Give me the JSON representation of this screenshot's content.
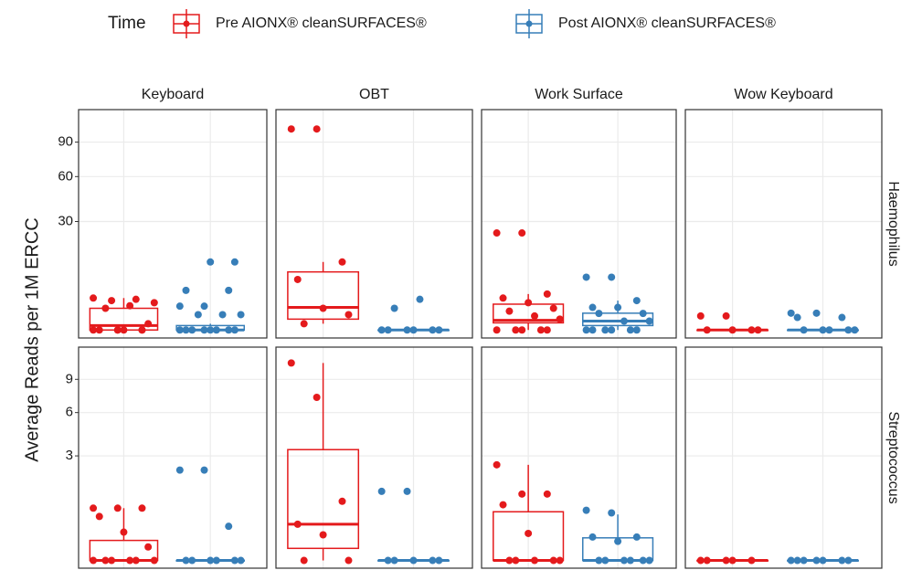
{
  "chart_data": {
    "type": "box",
    "yscale": "sqrt",
    "ylabel": "Average Reads per 1M ERCC",
    "legend_title": "Time",
    "grid": true,
    "series": [
      {
        "name": "Pre AIONX® cleanSURFACES®",
        "color": "#e41a1c"
      },
      {
        "name": "Post AIONX® cleanSURFACES®",
        "color": "#377eb8"
      }
    ],
    "columns": [
      "Keyboard",
      "OBT",
      "Work Surface",
      "Wow Keyboard"
    ],
    "rows": [
      {
        "label": "Haemophilus",
        "ylim": [
          0,
          115
        ],
        "yticks": [
          30,
          60,
          90
        ],
        "panels": [
          {
            "groups": [
              {
                "points": [
                  0,
                  0,
                  0,
                  0,
                  0,
                  0.1,
                  1.2,
                  1.5,
                  1.9,
                  2.2,
                  2.4,
                  2.6,
                  0,
                  0
                ],
                "box": {
                  "min": 0,
                  "q1": 0,
                  "median": 0.05,
                  "q3": 1.2,
                  "max": 2.6
                }
              },
              {
                "points": [
                  0,
                  0,
                  0,
                  0,
                  0,
                  0,
                  0,
                  0,
                  0.6,
                  0.6,
                  0.6,
                  1.45,
                  1.45,
                  4,
                  4,
                  11.8,
                  11.8
                ],
                "box": {
                  "min": 0,
                  "q1": 0,
                  "median": 0,
                  "q3": 0.05,
                  "max": 0.1
                }
              }
            ]
          },
          {
            "groups": [
              {
                "points": [
                  103,
                  103,
                  11.8,
                  6.5,
                  1.2,
                  0.6,
                  0.1
                ],
                "box": {
                  "min": 0.1,
                  "q1": 0.3,
                  "median": 1.3,
                  "q3": 8.6,
                  "max": 11.8
                }
              },
              {
                "points": [
                  0,
                  0,
                  0,
                  0,
                  0,
                  0,
                  1.2,
                  2.4
                ],
                "box": {
                  "min": 0,
                  "q1": 0,
                  "median": 0,
                  "q3": 0,
                  "max": 0
                }
              }
            ]
          },
          {
            "groups": [
              {
                "points": [
                  24,
                  24,
                  3.3,
                  2.6,
                  1.9,
                  1.2,
                  0.9,
                  0.5,
                  0.3,
                  0,
                  0,
                  0,
                  0,
                  0
                ],
                "box": {
                  "min": 0,
                  "q1": 0.13,
                  "median": 0.24,
                  "q3": 1.7,
                  "max": 3.3
                }
              },
              {
                "points": [
                  7.1,
                  7.1,
                  2.2,
                  1.3,
                  1.3,
                  0.7,
                  0.7,
                  0.2,
                  0.2,
                  0,
                  0,
                  0,
                  0,
                  0,
                  0
                ],
                "box": {
                  "min": 0,
                  "q1": 0.05,
                  "median": 0.2,
                  "q3": 0.72,
                  "max": 2.2
                }
              }
            ]
          },
          {
            "groups": [
              {
                "points": [
                  0.5,
                  0.5,
                  0,
                  0,
                  0,
                  0
                ],
                "box": {
                  "min": 0,
                  "q1": 0,
                  "median": 0,
                  "q3": 0,
                  "max": 0
                }
              },
              {
                "points": [
                  0.72,
                  0.72,
                  0.4,
                  0.4,
                  0,
                  0,
                  0,
                  0,
                  0
                ],
                "box": {
                  "min": 0,
                  "q1": 0,
                  "median": 0,
                  "q3": 0,
                  "max": 0
                }
              }
            ]
          }
        ]
      },
      {
        "label": "Streptococcus",
        "ylim": [
          0,
          11.6
        ],
        "yticks": [
          3,
          6,
          9
        ],
        "panels": [
          {
            "groups": [
              {
                "points": [
                  0.75,
                  0.75,
                  0.75,
                  0.53,
                  0.22,
                  0.05,
                  0,
                  0,
                  0,
                  0,
                  0,
                  0
                ],
                "box": {
                  "min": 0,
                  "q1": 0,
                  "median": 0,
                  "q3": 0.11,
                  "max": 0.75
                }
              },
              {
                "points": [
                  2.24,
                  2.24,
                  0.32,
                  0,
                  0,
                  0,
                  0,
                  0,
                  0
                ],
                "box": {
                  "min": 0,
                  "q1": 0,
                  "median": 0,
                  "q3": 0,
                  "max": 0
                }
              }
            ]
          },
          {
            "groups": [
              {
                "points": [
                  10.7,
                  7.3,
                  0.96,
                  0.36,
                  0.18,
                  0,
                  0
                ],
                "box": {
                  "min": 0,
                  "q1": 0.04,
                  "median": 0.36,
                  "q3": 3.37,
                  "max": 10.7
                }
              },
              {
                "points": [
                  1.31,
                  1.31,
                  0,
                  0,
                  0,
                  0,
                  0
                ],
                "box": {
                  "min": 0,
                  "q1": 0,
                  "median": 0,
                  "q3": 0,
                  "max": 0
                }
              }
            ]
          },
          {
            "groups": [
              {
                "points": [
                  2.51,
                  1.21,
                  1.21,
                  0.85,
                  0.2,
                  0,
                  0,
                  0,
                  0,
                  0
                ],
                "box": {
                  "min": 0,
                  "q1": 0,
                  "median": 0,
                  "q3": 0.65,
                  "max": 2.51
                }
              },
              {
                "points": [
                  0.69,
                  0.62,
                  0.15,
                  0.15,
                  0.1,
                  0,
                  0,
                  0,
                  0,
                  0,
                  0
                ],
                "box": {
                  "min": 0,
                  "q1": 0,
                  "median": 0,
                  "q3": 0.14,
                  "max": 0.58
                }
              }
            ]
          },
          {
            "groups": [
              {
                "points": [
                  0,
                  0,
                  0,
                  0,
                  0
                ],
                "box": {
                  "min": 0,
                  "q1": 0,
                  "median": 0,
                  "q3": 0,
                  "max": 0
                }
              },
              {
                "points": [
                  0,
                  0,
                  0,
                  0,
                  0,
                  0,
                  0
                ],
                "box": {
                  "min": 0,
                  "q1": 0,
                  "median": 0,
                  "q3": 0,
                  "max": 0
                }
              }
            ]
          }
        ]
      }
    ]
  }
}
